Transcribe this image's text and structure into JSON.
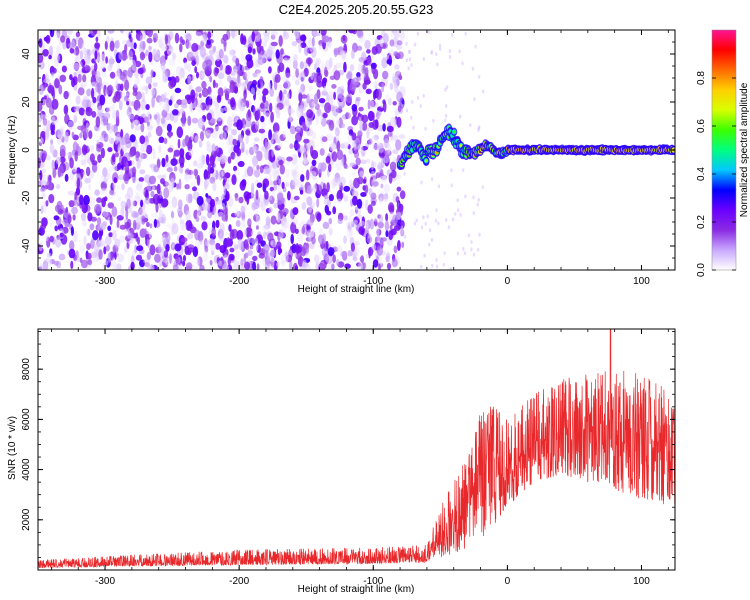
{
  "title": "C2E4.2025.205.20.55.G23",
  "chart_data": [
    {
      "type": "heatmap",
      "xlabel": "Height of straight line (km)",
      "ylabel": "Frequency (Hz)",
      "xlim": [
        -350,
        125
      ],
      "ylim": [
        -50,
        50
      ],
      "x_ticks": [
        -300,
        -200,
        -100,
        0,
        100
      ],
      "y_ticks": [
        -40,
        -20,
        0,
        20,
        40
      ],
      "colorbar": {
        "label": "Normalized spectral amplitude",
        "range": [
          0,
          1
        ],
        "ticks": [
          "0.0",
          "0.2",
          "0.4",
          "0.6",
          "0.8"
        ],
        "colors": [
          "#ffffff",
          "#c9a8ff",
          "#8a2be2",
          "#6a00ff",
          "#0000ff",
          "#00c8ff",
          "#00ff80",
          "#3cff00",
          "#d8ff00",
          "#ffd000",
          "#ff6a00",
          "#ff0000",
          "#ff1493"
        ]
      },
      "regions": [
        {
          "x_range": [
            -350,
            -80
          ],
          "description": "diffuse noise",
          "amplitude": 0.15
        },
        {
          "x_range": [
            -80,
            -30
          ],
          "description": "emerging signal near 0 Hz",
          "amplitude": 0.5
        },
        {
          "x_range": [
            -30,
            125
          ],
          "description": "strong carrier line at 0 Hz",
          "amplitude": 0.9
        }
      ]
    },
    {
      "type": "line",
      "xlabel": "Height of straight line (km)",
      "ylabel": "SNR (10 * v/v)",
      "xlim": [
        -350,
        125
      ],
      "ylim": [
        0,
        9600
      ],
      "x_ticks": [
        -300,
        -200,
        -100,
        0,
        100
      ],
      "y_ticks": [
        2000,
        4000,
        6000,
        8000
      ],
      "series": [
        {
          "color": "#e8282b",
          "envelope_x": [
            -350,
            -280,
            -200,
            -100,
            -60,
            -50,
            -40,
            -30,
            -20,
            -10,
            0,
            20,
            40,
            60,
            80,
            100,
            125
          ],
          "envelope_low": [
            80,
            150,
            200,
            250,
            300,
            500,
            600,
            900,
            1200,
            1800,
            2500,
            3500,
            3800,
            3500,
            3200,
            2800,
            2500
          ],
          "envelope_high": [
            400,
            600,
            800,
            900,
            1000,
            2500,
            3500,
            4500,
            6500,
            6500,
            6000,
            7000,
            7600,
            7800,
            8000,
            7800,
            7000
          ],
          "peak": {
            "x": 77,
            "y": 9600
          }
        }
      ]
    }
  ]
}
